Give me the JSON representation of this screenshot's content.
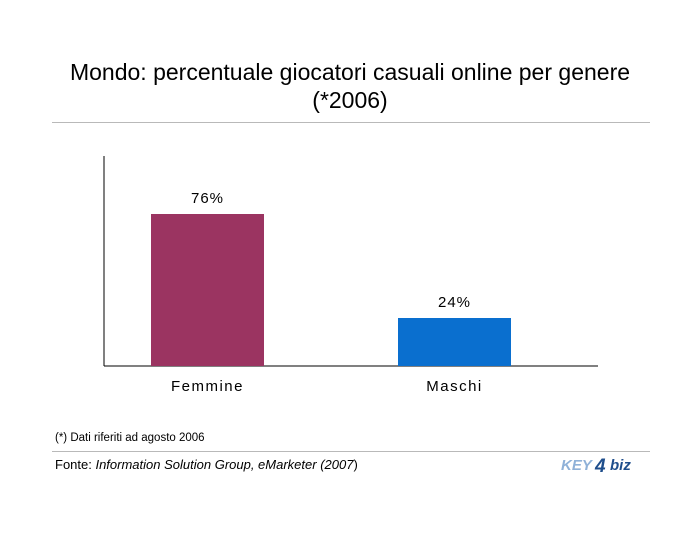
{
  "chart_data": {
    "type": "bar",
    "title": "Mondo: percentuale giocatori casuali online per genere",
    "subtitle": "(*2006)",
    "categories": [
      "Femmine",
      "Maschi"
    ],
    "values": [
      76,
      24
    ],
    "data_labels": [
      "76%",
      "24%"
    ],
    "colors": [
      "#9b3461",
      "#0a6fcf"
    ],
    "ylim": [
      0,
      100
    ],
    "xlabel": "",
    "ylabel": "",
    "grid": false
  },
  "notes": {
    "footnote": "(*) Dati riferiti ad agosto 2006",
    "source_prefix": "Fonte: ",
    "source_ref": "Information Solution Group, eMarketer (2007",
    "source_suffix": ")"
  },
  "logo": {
    "text_left": "KEY",
    "text_digit": "4",
    "text_right": "biz",
    "color_dark": "#1f4e8c",
    "color_light": "#8fb1d8"
  }
}
